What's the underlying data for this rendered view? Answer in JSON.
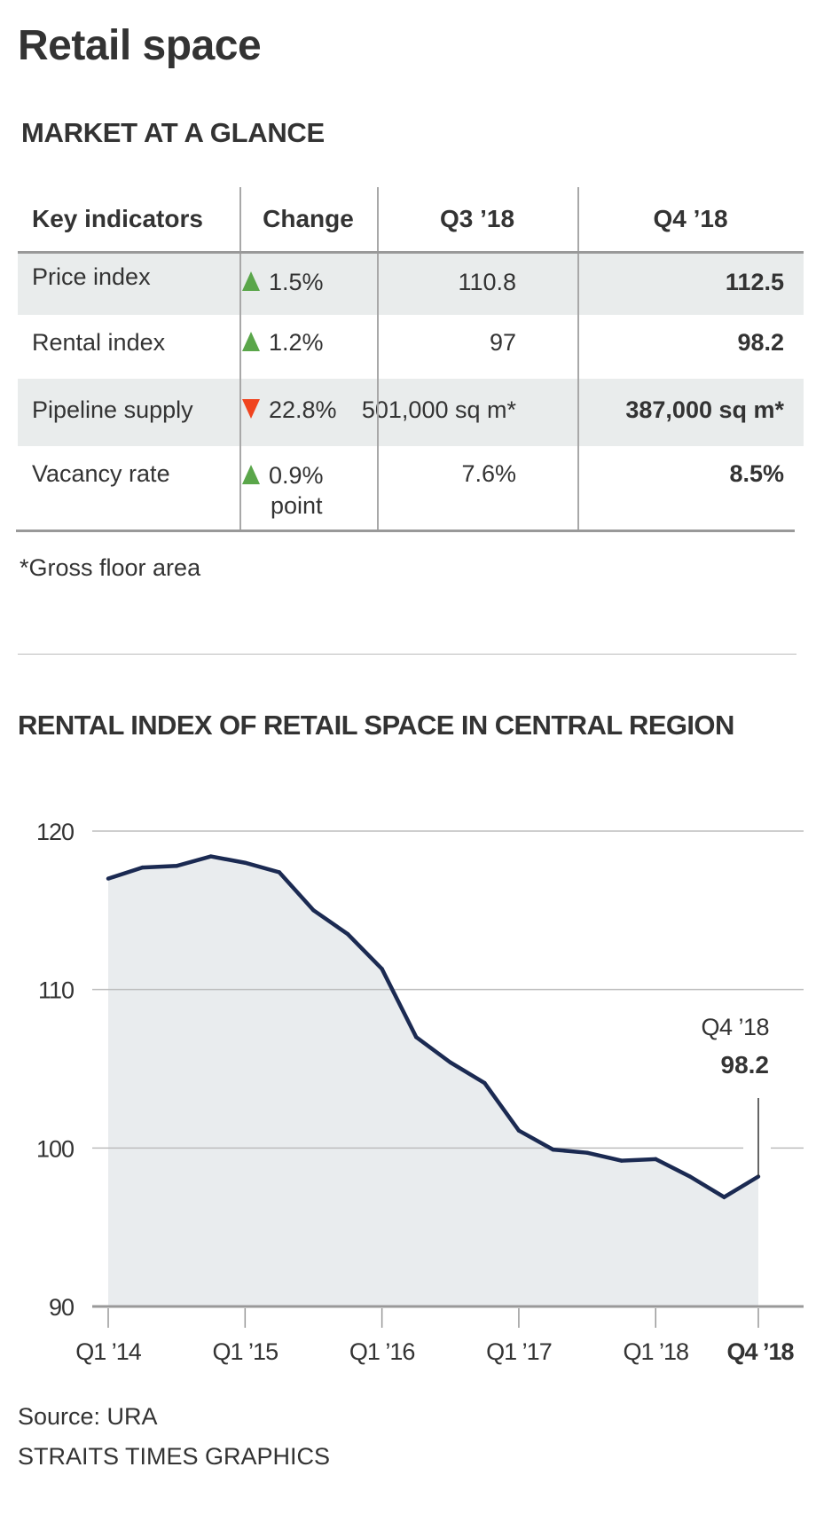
{
  "header": {
    "title": "Retail space",
    "subtitle": "MARKET AT A GLANCE"
  },
  "table": {
    "columns": [
      "Key indicators",
      "Change",
      "Q3 ’18",
      "Q4 ’18"
    ],
    "rows": [
      {
        "indicator": "Price index",
        "direction": "up",
        "change": "1.5%",
        "change_line2": "",
        "q3": "110.8",
        "q4": "112.5"
      },
      {
        "indicator": "Rental index",
        "direction": "up",
        "change": "1.2%",
        "change_line2": "",
        "q3": "97",
        "q4": "98.2"
      },
      {
        "indicator": "Pipeline supply",
        "direction": "down",
        "change": "22.8%",
        "change_line2": "",
        "q3": "501,000 sq m*",
        "q4": "387,000 sq m*"
      },
      {
        "indicator": "Vacancy rate",
        "direction": "up",
        "change": "0.9%",
        "change_line2": "point",
        "q3": "7.6%",
        "q4": "8.5%"
      }
    ],
    "footnote": "*Gross floor area",
    "colors": {
      "up": "#5aa64a",
      "down": "#f0441f",
      "shade": "#e9ecec"
    }
  },
  "chart_data": {
    "type": "area",
    "title": "RENTAL INDEX OF RETAIL SPACE IN CENTRAL REGION",
    "xlabel": "",
    "ylabel": "",
    "x": [
      "Q1 '14",
      "Q2 '14",
      "Q3 '14",
      "Q4 '14",
      "Q1 '15",
      "Q2 '15",
      "Q3 '15",
      "Q4 '15",
      "Q1 '16",
      "Q2 '16",
      "Q3 '16",
      "Q4 '16",
      "Q1 '17",
      "Q2 '17",
      "Q3 '17",
      "Q4 '17",
      "Q1 '18",
      "Q2 '18",
      "Q3 '18",
      "Q4 '18"
    ],
    "series": [
      {
        "name": "Rental index",
        "values": [
          117.0,
          117.7,
          117.8,
          118.4,
          118.0,
          117.4,
          115.0,
          113.5,
          111.3,
          107.0,
          105.4,
          104.1,
          101.1,
          99.9,
          99.7,
          99.2,
          99.3,
          98.2,
          96.9,
          98.2
        ]
      }
    ],
    "ylim": [
      90,
      120
    ],
    "yticks": [
      90,
      100,
      110,
      120
    ],
    "xtick_labels": [
      {
        "index": 0,
        "label": "Q1 ’14",
        "bold": false
      },
      {
        "index": 4,
        "label": "Q1 ’15",
        "bold": false
      },
      {
        "index": 8,
        "label": "Q1 ’16",
        "bold": false
      },
      {
        "index": 12,
        "label": "Q1 ’17",
        "bold": false
      },
      {
        "index": 16,
        "label": "Q1 ’18",
        "bold": false
      },
      {
        "index": 19,
        "label": "Q4 ’18",
        "bold": true
      }
    ],
    "annotation": {
      "index": 19,
      "label": "Q4 ’18",
      "value": "98.2"
    },
    "grid": true,
    "colors": {
      "line": "#1b2a52",
      "fill": "#e9ecee",
      "grid": "#bdbdbd",
      "axis": "#999999"
    }
  },
  "footer": {
    "source": "Source: URA",
    "credit": "STRAITS TIMES GRAPHICS"
  }
}
